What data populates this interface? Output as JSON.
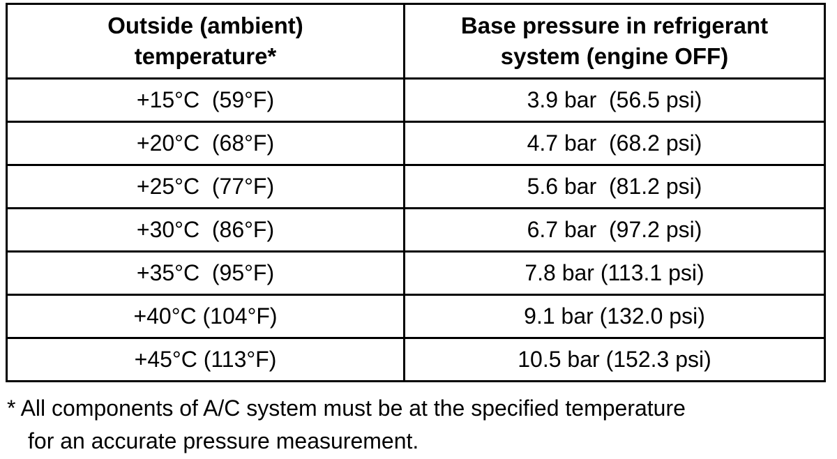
{
  "table": {
    "header": [
      [
        "Outside (ambient)",
        "temperature*"
      ],
      [
        "Base pressure in refrigerant",
        "system (engine OFF)"
      ]
    ],
    "rows": [
      [
        "+15°C  (59°F)",
        "3.9 bar  (56.5 psi)"
      ],
      [
        "+20°C  (68°F)",
        "4.7 bar  (68.2 psi)"
      ],
      [
        "+25°C  (77°F)",
        "5.6 bar  (81.2 psi)"
      ],
      [
        "+30°C  (86°F)",
        "6.7 bar  (97.2 psi)"
      ],
      [
        "+35°C  (95°F)",
        "7.8 bar (113.1 psi)"
      ],
      [
        "+40°C (104°F)",
        "9.1 bar (132.0 psi)"
      ],
      [
        "+45°C (113°F)",
        "10.5 bar (152.3 psi)"
      ]
    ]
  },
  "footnote": [
    "* All components of A/C system must be at the specified temperature",
    "for an accurate pressure measurement."
  ]
}
